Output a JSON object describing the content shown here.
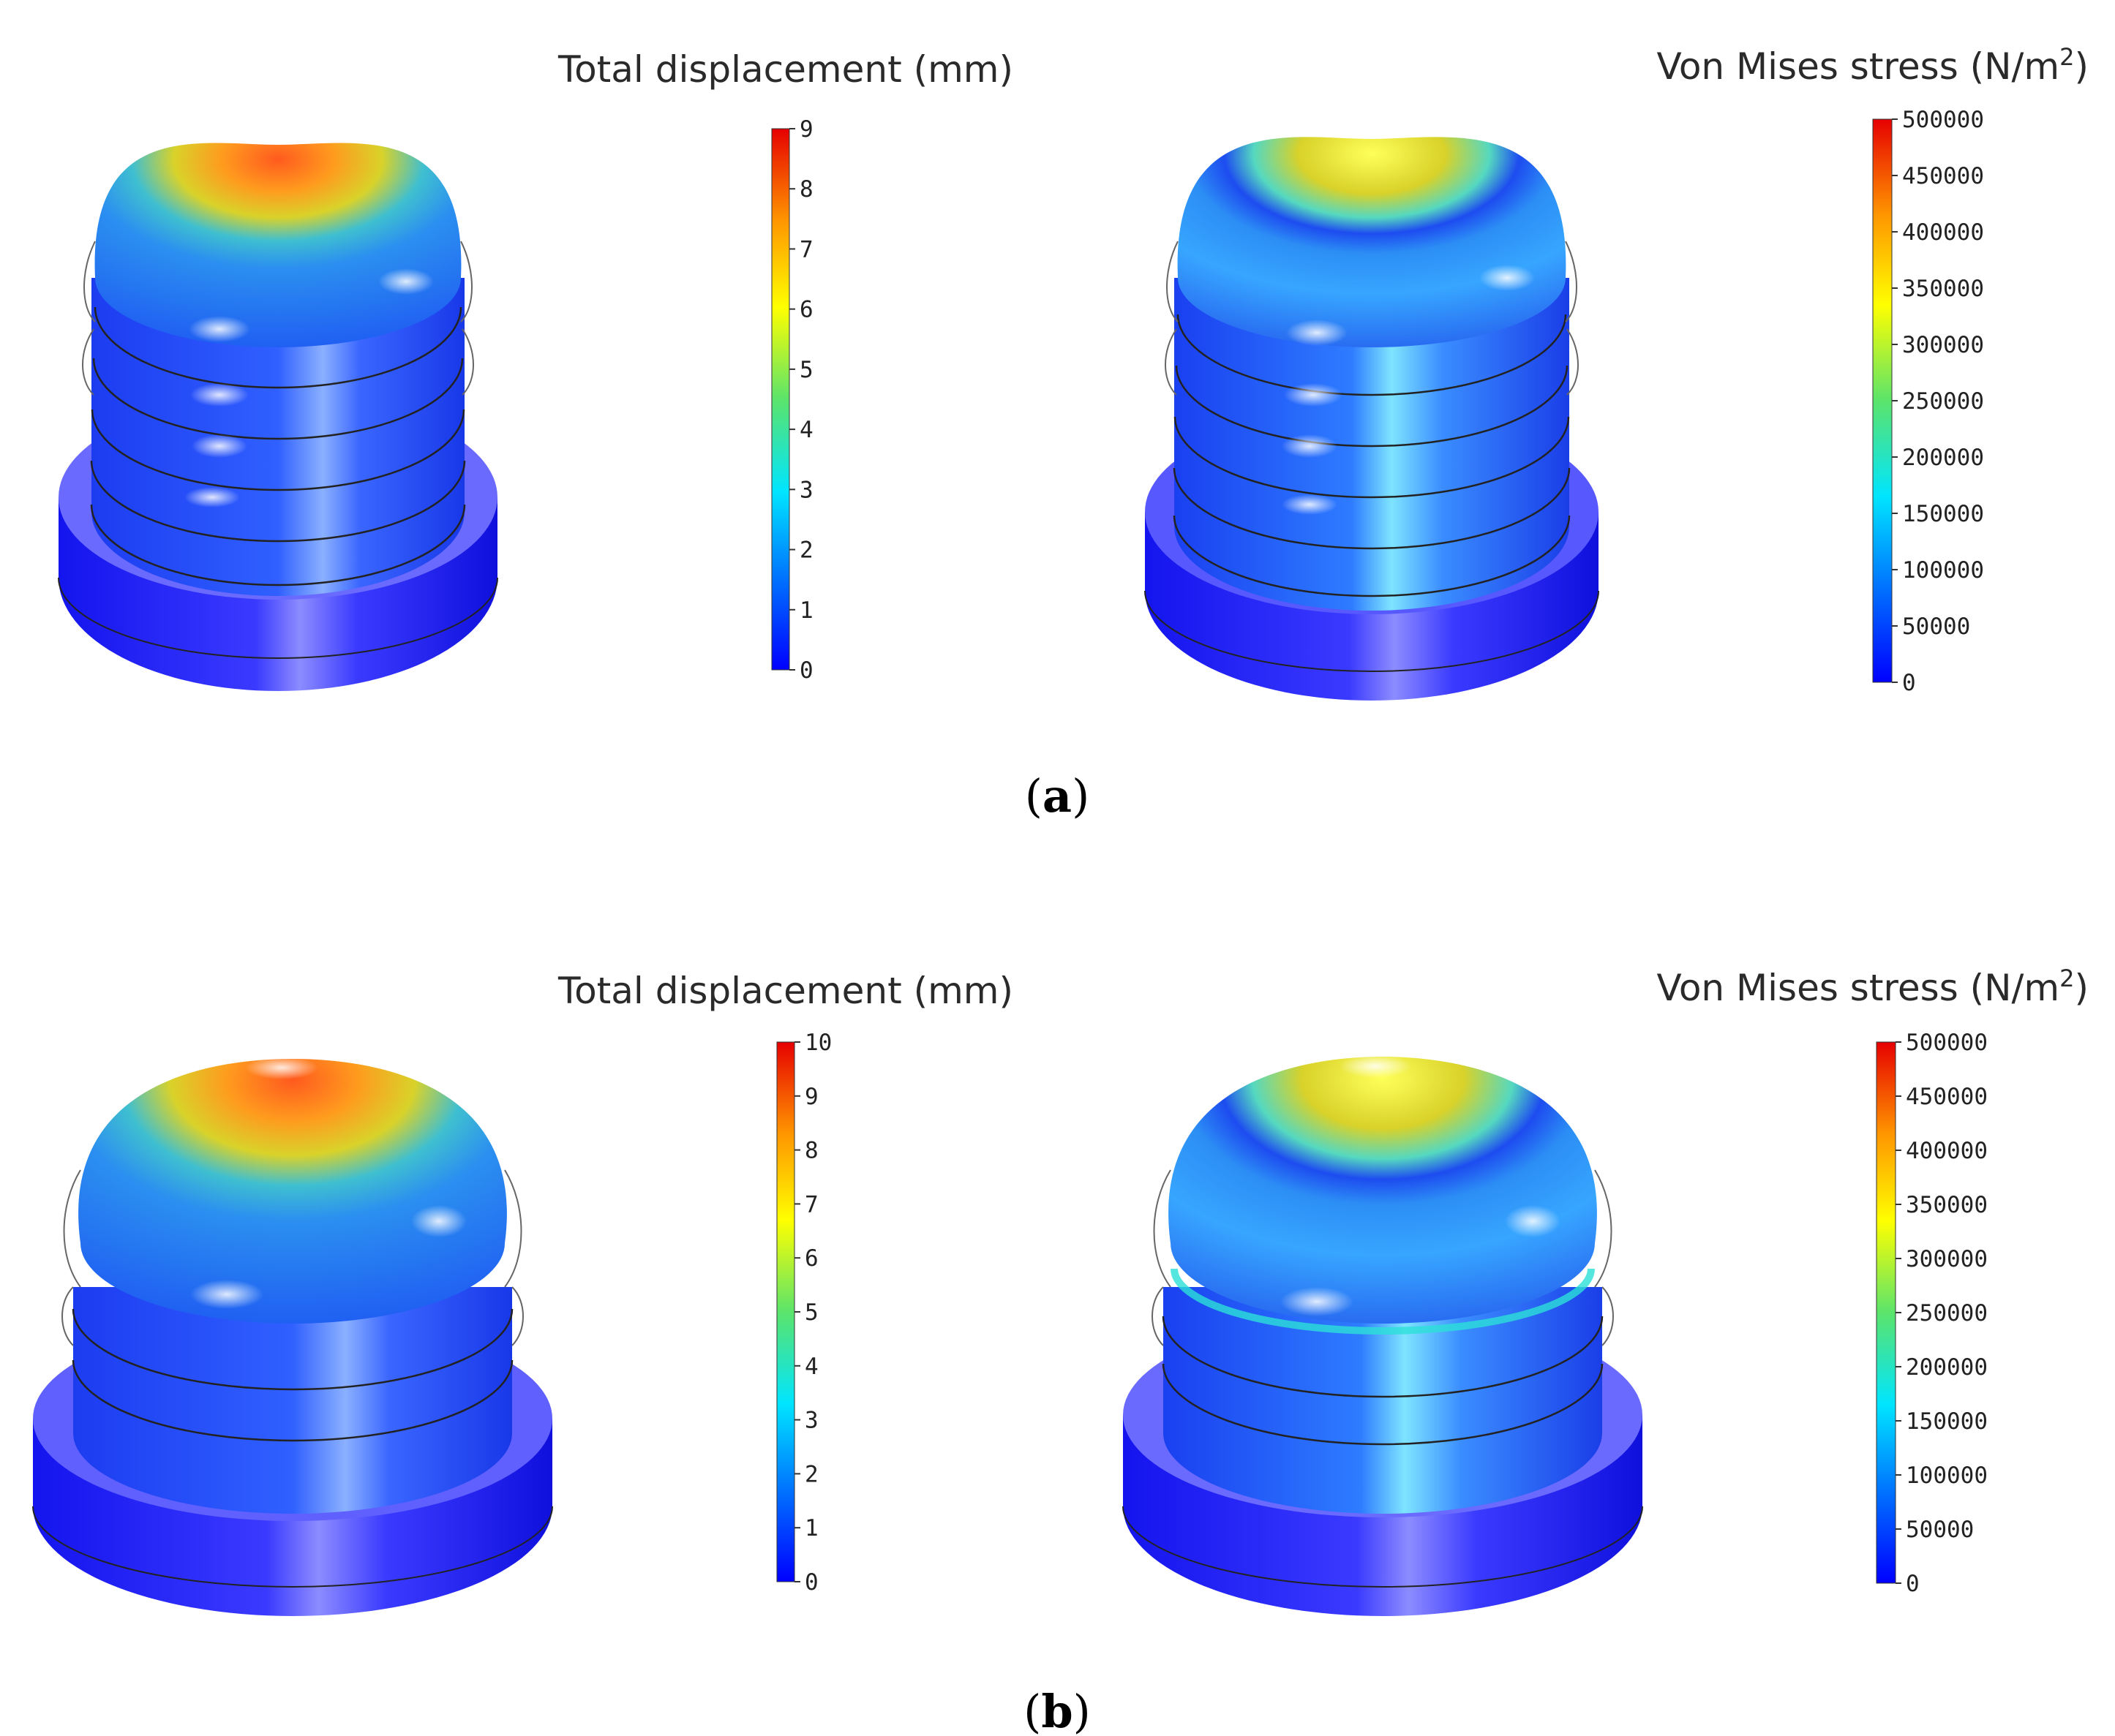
{
  "colormap": [
    "#0000ff",
    "#0073ff",
    "#00e5ff",
    "#5be46b",
    "#ffff00",
    "#ff9600",
    "#e60000"
  ],
  "panels": [
    {
      "id": "a",
      "caption_open": "(",
      "caption_letter": "a",
      "caption_close": ")",
      "plots": [
        {
          "kind": "displacement",
          "title": "Total displacement (mm)",
          "ticks": [
            "0",
            "1",
            "2",
            "3",
            "4",
            "5",
            "6",
            "7",
            "8",
            "9"
          ],
          "peak_color": "#ff5a1e"
        },
        {
          "kind": "stress",
          "title": "Von Mises stress (N/m",
          "title_sup": "2",
          "title_end": ")",
          "ticks": [
            "0",
            "50000",
            "100000",
            "150000",
            "200000",
            "250000",
            "300000",
            "350000",
            "400000",
            "450000",
            "500000"
          ],
          "peak_color": "#e8e21a"
        }
      ]
    },
    {
      "id": "b",
      "caption_open": "(",
      "caption_letter": "b",
      "caption_close": ")",
      "plots": [
        {
          "kind": "displacement",
          "title": "Total displacement (mm)",
          "ticks": [
            "0",
            "1",
            "2",
            "3",
            "4",
            "5",
            "6",
            "7",
            "8",
            "9",
            "10"
          ],
          "peak_color": "#ff5a1e"
        },
        {
          "kind": "stress",
          "title": "Von Mises stress (N/m",
          "title_sup": "2",
          "title_end": ")",
          "ticks": [
            "0",
            "50000",
            "100000",
            "150000",
            "200000",
            "250000",
            "300000",
            "350000",
            "400000",
            "450000",
            "500000"
          ],
          "peak_color": "#e8e21a"
        }
      ]
    }
  ]
}
